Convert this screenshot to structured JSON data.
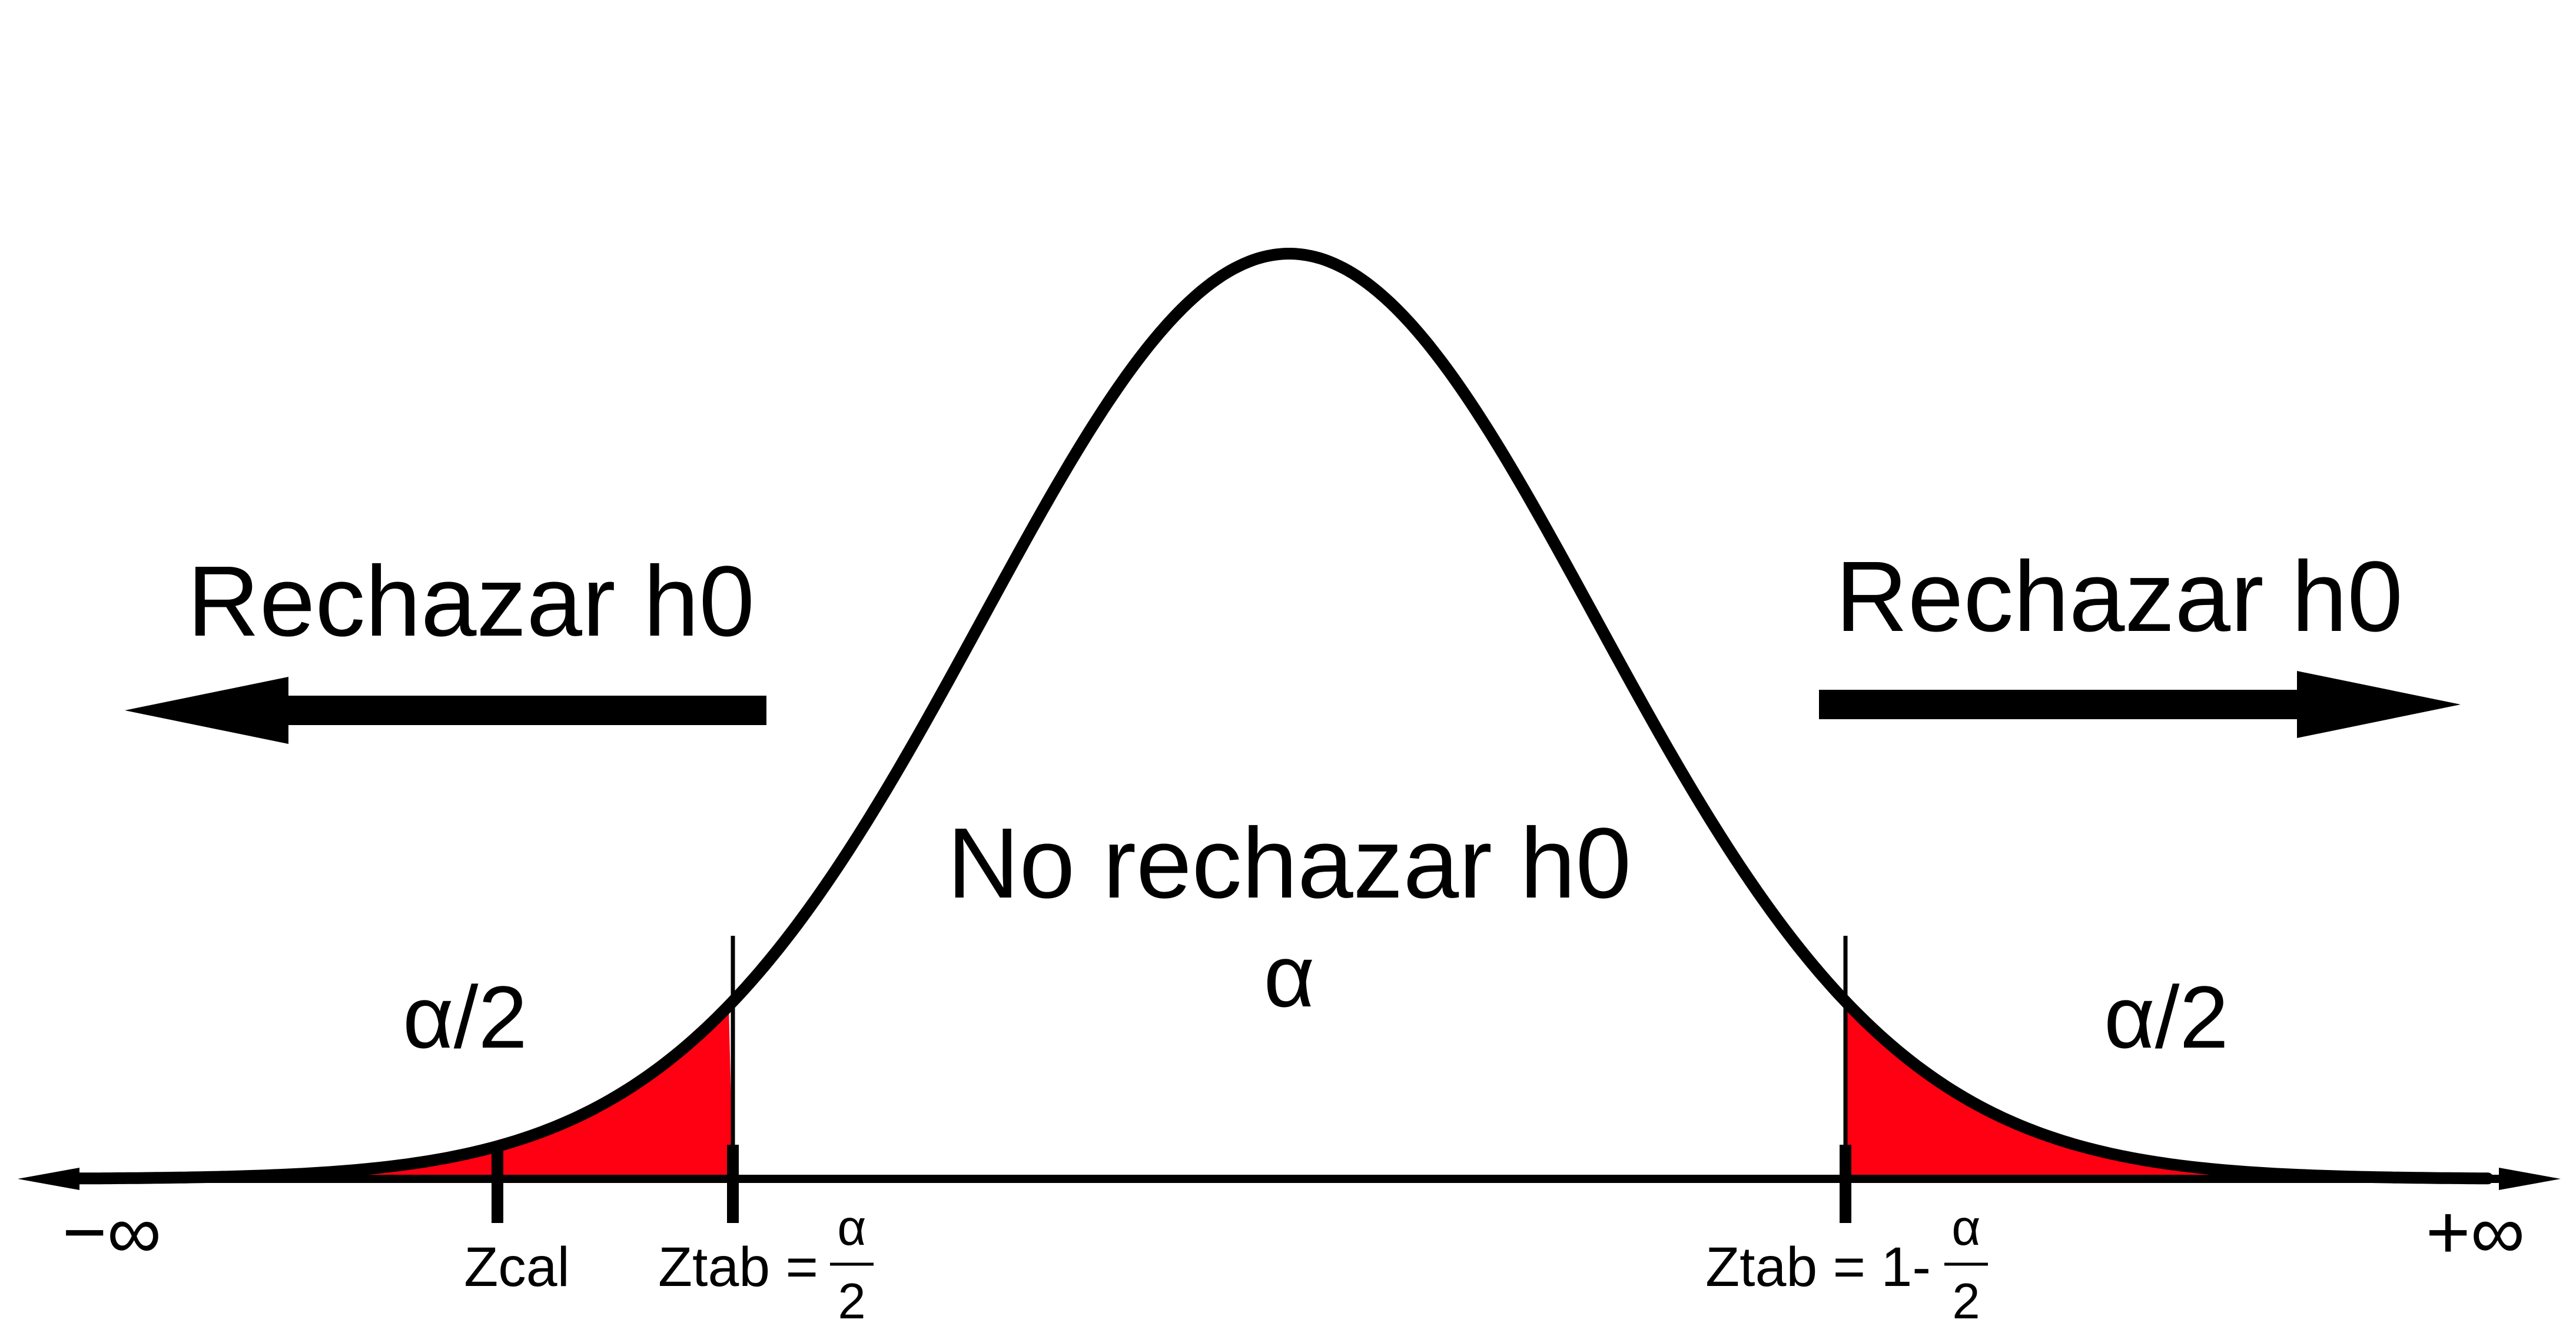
{
  "diagram": {
    "type": "normal-distribution-two-tailed-test",
    "left_region": {
      "label": "Rechazar h0",
      "area": "α/2",
      "arrow_direction": "left"
    },
    "right_region": {
      "label": "Rechazar h0",
      "area": "α/2",
      "arrow_direction": "right"
    },
    "center_region": {
      "label": "No rechazar h0",
      "area": "α"
    },
    "axis": {
      "left_end": "−∞",
      "right_end": "+∞"
    },
    "ticks": {
      "zcal": "Zcal",
      "ztab_left_prefix": "Ztab =",
      "ztab_left_numerator": "α",
      "ztab_left_denominator": "2",
      "ztab_right_prefix": "Ztab = 1-",
      "ztab_right_numerator": "α",
      "ztab_right_denominator": "2"
    },
    "colors": {
      "curve": "#000000",
      "rejection_fill": "#ff0013",
      "background": "#ffffff"
    }
  }
}
